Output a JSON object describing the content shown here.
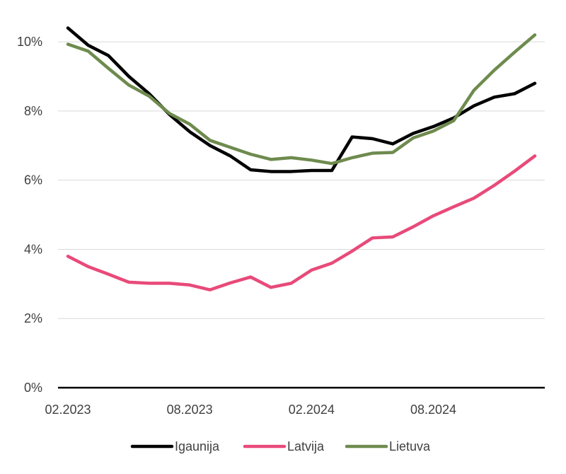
{
  "chart_data": {
    "type": "line",
    "x": [
      "02.2023",
      "03.2023",
      "04.2023",
      "05.2023",
      "06.2023",
      "07.2023",
      "08.2023",
      "09.2023",
      "10.2023",
      "11.2023",
      "12.2023",
      "01.2024",
      "02.2024",
      "03.2024",
      "04.2024",
      "05.2024",
      "06.2024",
      "07.2024",
      "08.2024",
      "09.2024",
      "10.2024",
      "11.2024",
      "12.2024",
      "01.2025"
    ],
    "x_tick_labels": [
      "02.2023",
      "08.2023",
      "02.2024",
      "08.2024"
    ],
    "y_tick_labels": [
      "0%",
      "2%",
      "4%",
      "6%",
      "8%",
      "10%"
    ],
    "ylim": [
      0,
      10.8
    ],
    "y_unit": "%",
    "grid": "horizontal",
    "legend_position": "bottom",
    "series": [
      {
        "name": "Igaunija",
        "color": "#000000",
        "values": [
          10.4,
          9.9,
          9.6,
          9.0,
          8.5,
          7.9,
          7.4,
          7.0,
          6.7,
          6.3,
          6.25,
          6.25,
          6.28,
          6.28,
          7.25,
          7.2,
          7.05,
          7.35,
          7.55,
          7.8,
          8.15,
          8.4,
          8.5,
          8.8
        ]
      },
      {
        "name": "Latvija",
        "color": "#E84A7A",
        "values": [
          3.8,
          3.5,
          3.28,
          3.05,
          3.02,
          3.02,
          2.97,
          2.83,
          3.03,
          3.2,
          2.9,
          3.02,
          3.4,
          3.6,
          3.95,
          4.33,
          4.36,
          4.65,
          4.97,
          5.23,
          5.48,
          5.85,
          6.26,
          6.7
        ]
      },
      {
        "name": "Lietuva",
        "color": "#6E8B4E",
        "values": [
          9.93,
          9.73,
          9.23,
          8.75,
          8.43,
          7.93,
          7.62,
          7.15,
          6.95,
          6.75,
          6.6,
          6.65,
          6.58,
          6.48,
          6.65,
          6.78,
          6.8,
          7.22,
          7.42,
          7.72,
          8.6,
          9.18,
          9.7,
          10.2
        ]
      }
    ]
  }
}
